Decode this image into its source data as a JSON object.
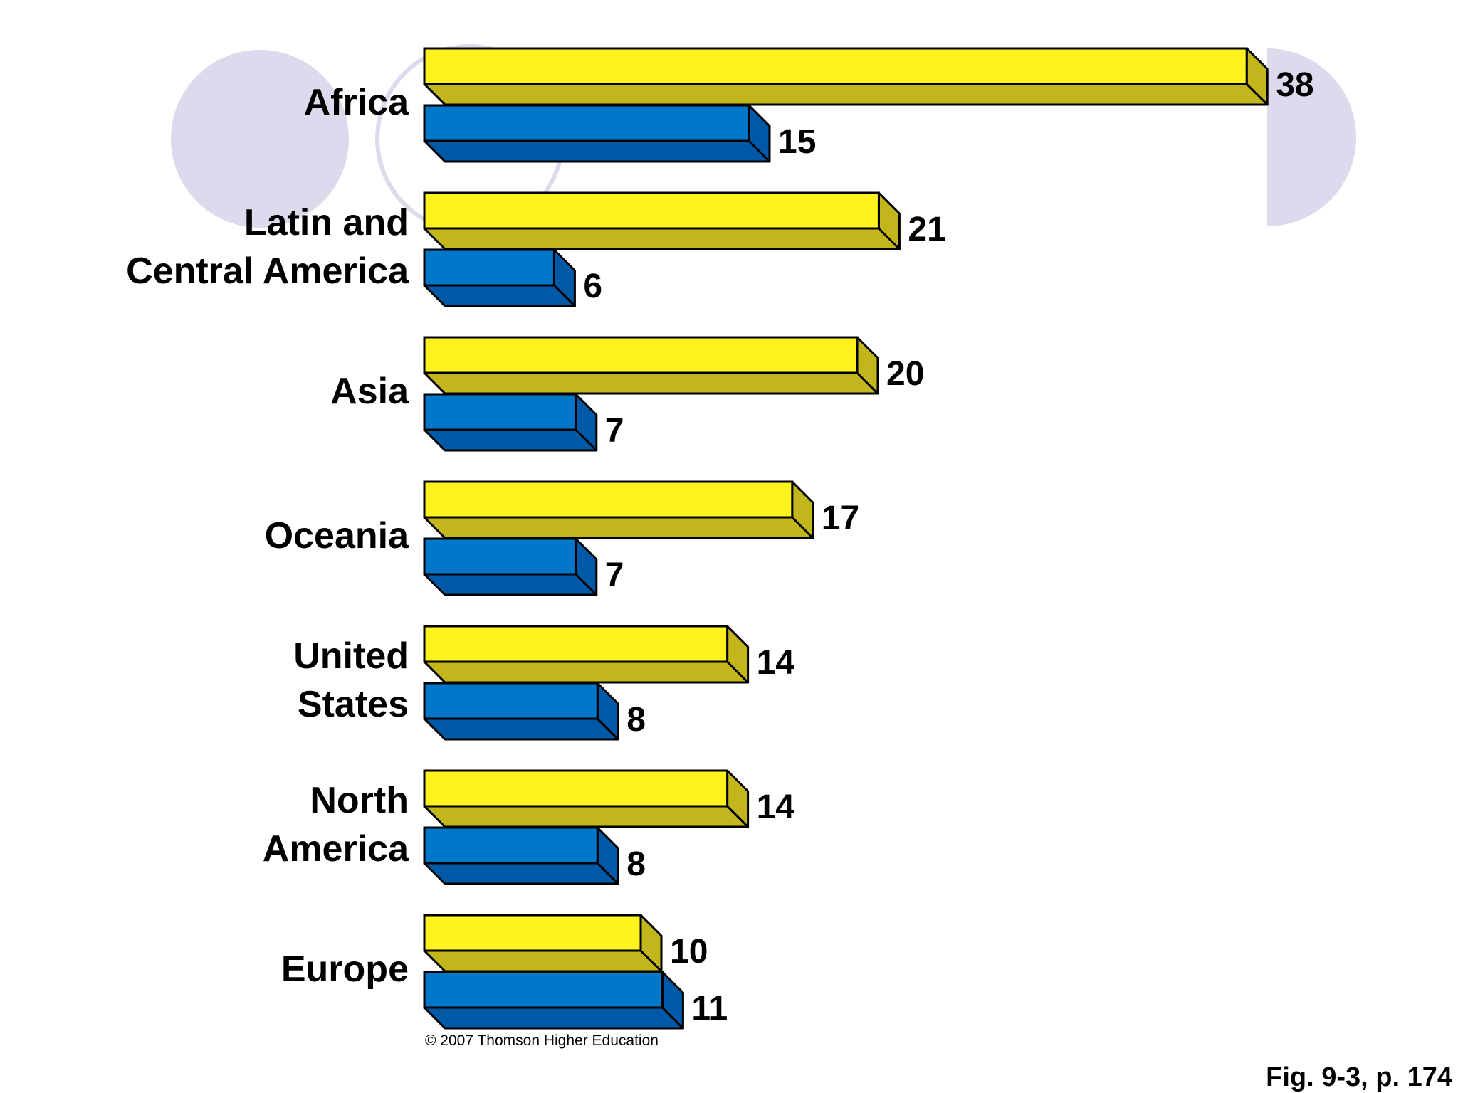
{
  "chart_data": {
    "type": "bar",
    "orientation": "horizontal",
    "style": "3d",
    "categories": [
      [
        "Africa"
      ],
      [
        "Latin and",
        "Central America"
      ],
      [
        "Asia"
      ],
      [
        "Oceania"
      ],
      [
        "United",
        "States"
      ],
      [
        "North",
        "America"
      ],
      [
        "Europe"
      ]
    ],
    "series": [
      {
        "values": [
          38,
          21,
          20,
          17,
          14,
          14,
          10
        ]
      },
      {
        "values": [
          15,
          6,
          7,
          7,
          8,
          8,
          11
        ]
      }
    ],
    "xlim": [
      0,
      38
    ],
    "grid": false,
    "legend": "none",
    "colors": {
      "yellow_front": "#FFF21E",
      "yellow_side": "#C2B61C",
      "blue_front": "#0077C9",
      "blue_side": "#0059A6",
      "decor_circle": "#DCDAEC",
      "outline": "#000000"
    }
  },
  "footer": {
    "copyright": "© 2007 Thomson Higher Education",
    "caption": "Fig. 9-3, p. 174"
  }
}
